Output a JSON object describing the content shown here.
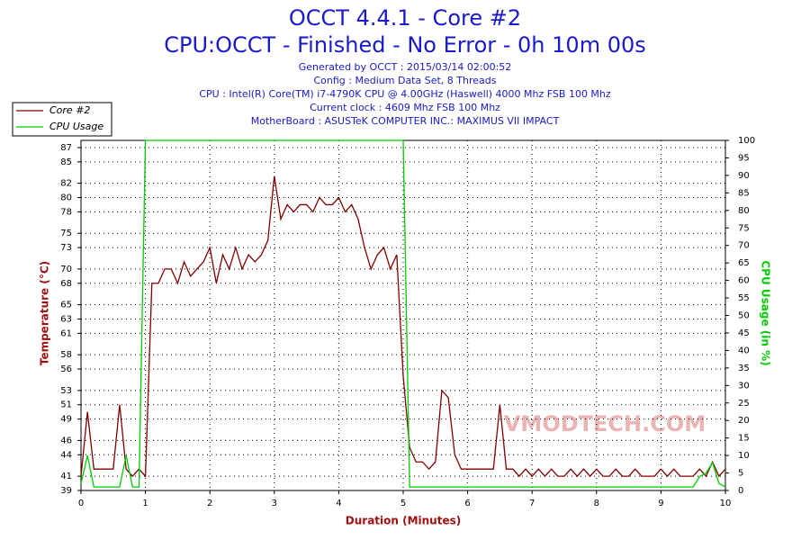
{
  "chart_data": {
    "type": "line",
    "title": "OCCT 4.4.1 - Core #2",
    "subtitle": "CPU:OCCT - Finished - No Error - 0h 10m 00s",
    "info": [
      "Generated by OCCT : 2015/03/14 02:00:52",
      "Config : Medium Data Set, 8 Threads",
      "CPU : Intel(R) Core(TM) i7-4790K CPU @ 4.00GHz (Haswell) 4000 Mhz FSB 100 Mhz",
      "Current clock : 4609 Mhz FSB 100 Mhz",
      "MotherBoard : ASUSTeK COMPUTER INC.: MAXIMUS VII IMPACT"
    ],
    "watermark": "VMODTECH.COM",
    "xlabel": "Duration (Minutes)",
    "ylabel": "Temperature (°C)",
    "y2label": "CPU Usage (in %)",
    "xlim": [
      0,
      10
    ],
    "xticks": [
      0,
      1,
      2,
      3,
      4,
      5,
      6,
      7,
      8,
      9,
      10
    ],
    "ylim": [
      39,
      88
    ],
    "yticks": [
      39,
      41,
      44,
      46,
      49,
      51,
      53,
      56,
      58,
      61,
      63,
      65,
      68,
      70,
      73,
      75,
      78,
      80,
      82,
      85,
      87
    ],
    "y2lim": [
      0,
      100
    ],
    "y2ticks": [
      0,
      5,
      10,
      15,
      20,
      25,
      30,
      35,
      40,
      45,
      50,
      55,
      60,
      65,
      70,
      75,
      80,
      85,
      90,
      95,
      100
    ],
    "grid": true,
    "x": [
      0,
      0.1,
      0.2,
      0.3,
      0.4,
      0.5,
      0.6,
      0.7,
      0.8,
      0.9,
      1,
      1.1,
      1.2,
      1.3,
      1.4,
      1.5,
      1.6,
      1.7,
      1.8,
      1.9,
      2,
      2.1,
      2.2,
      2.3,
      2.4,
      2.5,
      2.6,
      2.7,
      2.8,
      2.9,
      3,
      3.1,
      3.2,
      3.3,
      3.4,
      3.5,
      3.6,
      3.7,
      3.8,
      3.9,
      4,
      4.1,
      4.2,
      4.3,
      4.4,
      4.5,
      4.6,
      4.7,
      4.8,
      4.9,
      5,
      5.1,
      5.2,
      5.3,
      5.4,
      5.5,
      5.6,
      5.7,
      5.8,
      5.9,
      6,
      6.1,
      6.2,
      6.3,
      6.4,
      6.5,
      6.6,
      6.7,
      6.8,
      6.9,
      7,
      7.1,
      7.2,
      7.3,
      7.4,
      7.5,
      7.6,
      7.7,
      7.8,
      7.9,
      8,
      8.1,
      8.2,
      8.3,
      8.4,
      8.5,
      8.6,
      8.7,
      8.8,
      8.9,
      9,
      9.1,
      9.2,
      9.3,
      9.4,
      9.5,
      9.6,
      9.7,
      9.8,
      9.9,
      10
    ],
    "series": [
      {
        "name": "Core #2",
        "color": "#800000",
        "values": [
          41,
          50,
          42,
          42,
          42,
          42,
          51,
          42,
          41,
          42,
          41,
          68,
          68,
          70,
          70,
          68,
          71,
          69,
          70,
          71,
          73,
          68,
          72,
          70,
          73,
          70,
          72,
          71,
          72,
          74,
          83,
          77,
          79,
          78,
          79,
          79,
          78,
          80,
          79,
          79,
          80,
          78,
          79,
          77,
          73,
          70,
          72,
          73,
          70,
          72,
          55,
          45,
          43,
          43,
          42,
          43,
          53,
          52,
          44,
          42,
          42,
          42,
          42,
          42,
          42,
          51,
          42,
          42,
          41,
          42,
          41,
          42,
          41,
          42,
          41,
          41,
          42,
          41,
          42,
          41,
          42,
          41,
          41,
          42,
          41,
          41,
          42,
          41,
          41,
          41,
          42,
          41,
          42,
          41,
          41,
          41,
          42,
          41,
          43,
          41,
          42
        ]
      },
      {
        "name": "CPU Usage",
        "color": "#00cc00",
        "axis": "y2",
        "values": [
          2,
          10,
          1,
          1,
          1,
          1,
          1,
          10,
          1,
          1,
          100,
          100,
          100,
          100,
          100,
          100,
          100,
          100,
          100,
          100,
          100,
          100,
          100,
          100,
          100,
          100,
          100,
          100,
          100,
          100,
          100,
          100,
          100,
          100,
          100,
          100,
          100,
          100,
          100,
          100,
          100,
          100,
          100,
          100,
          100,
          100,
          100,
          100,
          100,
          100,
          100,
          1,
          1,
          1,
          1,
          1,
          1,
          1,
          1,
          1,
          1,
          1,
          1,
          1,
          1,
          1,
          1,
          1,
          1,
          1,
          1,
          1,
          1,
          1,
          1,
          1,
          1,
          1,
          1,
          1,
          1,
          1,
          1,
          1,
          1,
          1,
          1,
          1,
          1,
          1,
          1,
          1,
          1,
          1,
          1,
          1,
          4,
          5,
          8,
          2,
          1
        ]
      }
    ]
  }
}
